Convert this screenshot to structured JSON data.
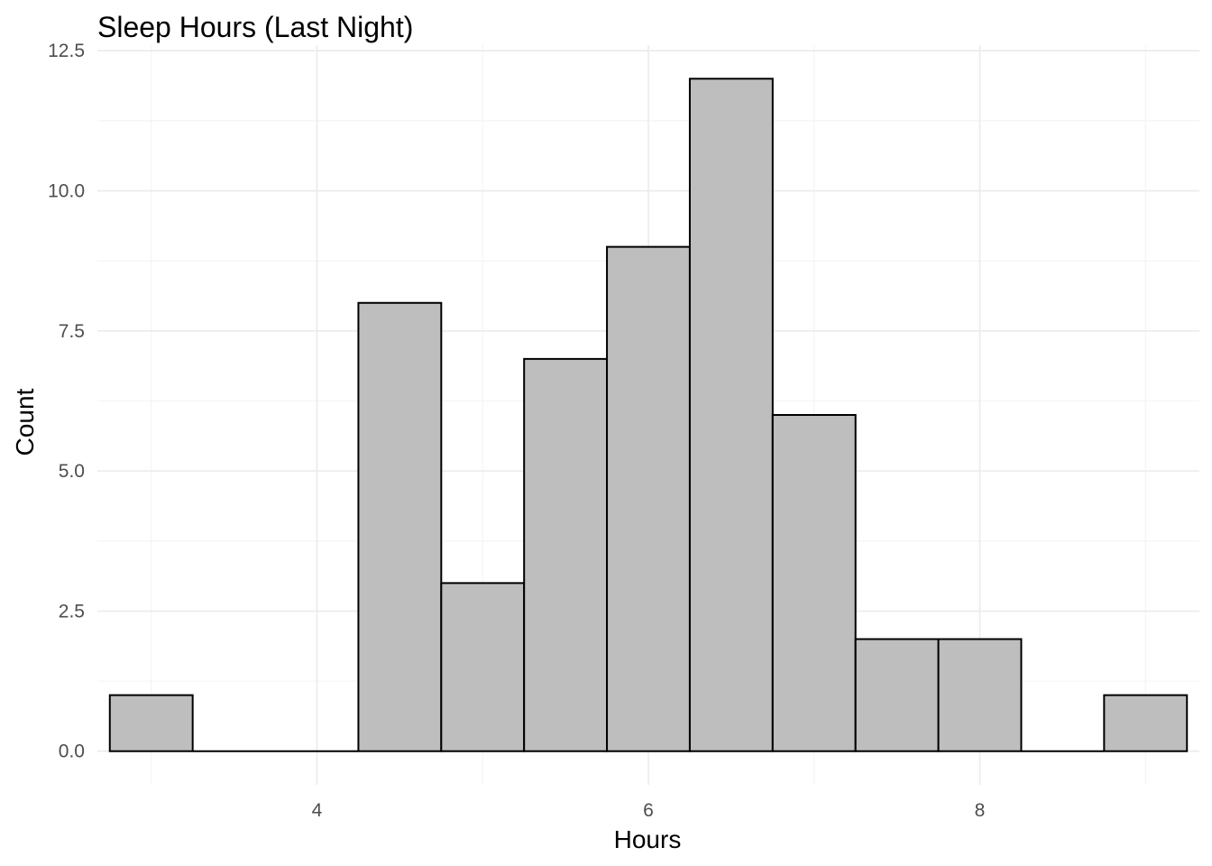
{
  "chart_data": {
    "type": "bar",
    "title": "Sleep Hours (Last Night)",
    "xlabel": "Hours",
    "ylabel": "Count",
    "xlim": [
      2.675,
      9.325
    ],
    "ylim": [
      -0.6,
      12.6
    ],
    "x_ticks": [
      4,
      6,
      8
    ],
    "x_tick_labels": [
      "4",
      "6",
      "8"
    ],
    "y_ticks": [
      0,
      2.5,
      5,
      7.5,
      10,
      12.5
    ],
    "y_tick_labels": [
      "0.0",
      "2.5",
      "5.0",
      "7.5",
      "10.0",
      "12.5"
    ],
    "grid": true,
    "bin_width": 0.5,
    "bins": [
      {
        "start": 2.75,
        "end": 3.25,
        "count": 1
      },
      {
        "start": 3.25,
        "end": 3.75,
        "count": 0
      },
      {
        "start": 3.75,
        "end": 4.25,
        "count": 0
      },
      {
        "start": 4.25,
        "end": 4.75,
        "count": 8
      },
      {
        "start": 4.75,
        "end": 5.25,
        "count": 3
      },
      {
        "start": 5.25,
        "end": 5.75,
        "count": 7
      },
      {
        "start": 5.75,
        "end": 6.25,
        "count": 9
      },
      {
        "start": 6.25,
        "end": 6.75,
        "count": 12
      },
      {
        "start": 6.75,
        "end": 7.25,
        "count": 6
      },
      {
        "start": 7.25,
        "end": 7.75,
        "count": 2
      },
      {
        "start": 7.75,
        "end": 8.25,
        "count": 2
      },
      {
        "start": 8.25,
        "end": 8.75,
        "count": 0
      },
      {
        "start": 8.75,
        "end": 9.25,
        "count": 1
      }
    ],
    "colors": {
      "bar_fill": "#bebebe",
      "bar_outline": "#000000"
    }
  }
}
